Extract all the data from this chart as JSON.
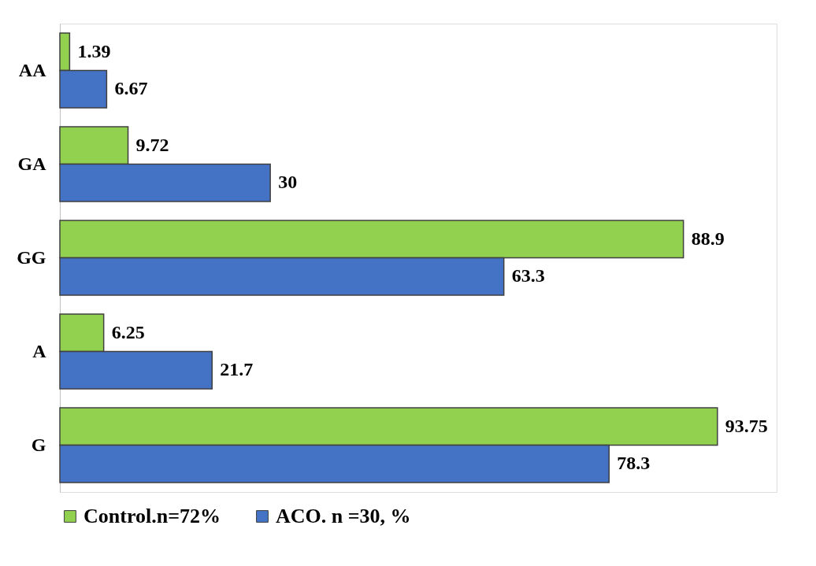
{
  "chart_data": {
    "type": "bar",
    "orientation": "horizontal",
    "categories": [
      "AA",
      "GA",
      "GG",
      "A",
      "G"
    ],
    "series": [
      {
        "name": "Control.n=72%",
        "color": "#92d050",
        "values": [
          1.39,
          9.72,
          88.9,
          6.25,
          93.75
        ]
      },
      {
        "name": "ACO. n =30, %",
        "color": "#4472c4",
        "values": [
          6.67,
          30,
          63.3,
          21.7,
          78.3
        ]
      }
    ],
    "data_labels": true,
    "tick_labels": "y",
    "legend": "bottom",
    "grid": false
  }
}
